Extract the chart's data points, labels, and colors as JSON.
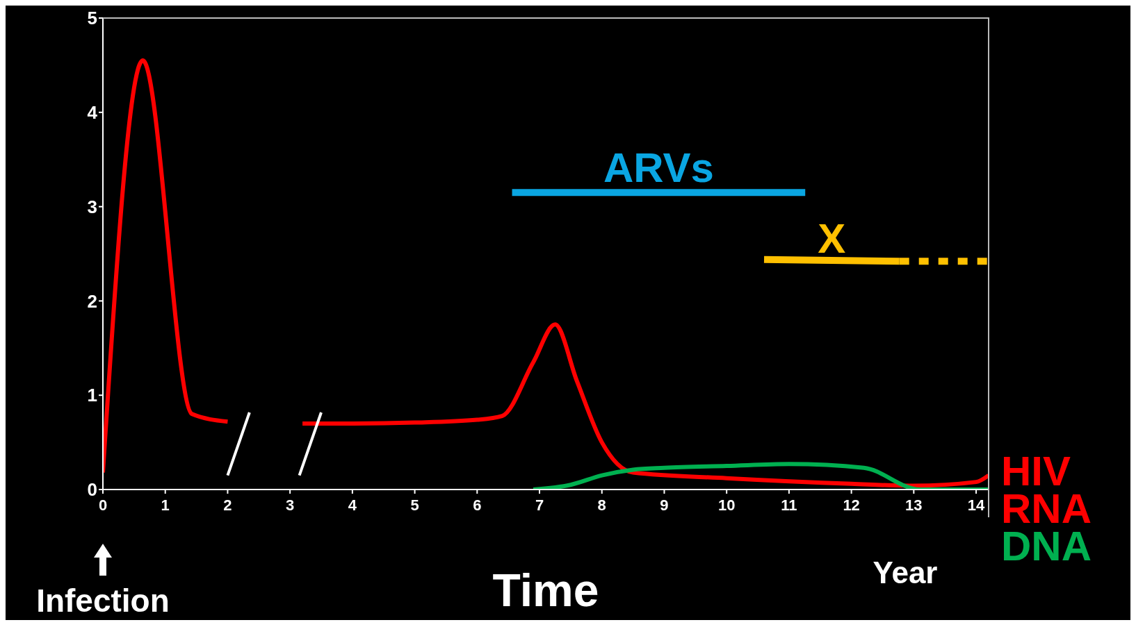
{
  "chart_data": {
    "type": "line",
    "xlabel": "Time",
    "xlim": [
      0,
      14.2
    ],
    "ylim": [
      0,
      5
    ],
    "xticks": [
      0,
      1,
      2,
      3,
      4,
      5,
      6,
      7,
      8,
      9,
      10,
      11,
      12,
      13,
      14
    ],
    "yticks": [
      0,
      1,
      2,
      3,
      4,
      5
    ],
    "marker": "none",
    "annotations": [
      "Year",
      "Infection"
    ],
    "series": [
      {
        "name": "HIV RNA",
        "color": "#ff0000",
        "x": [
          0,
          0.64,
          1.43,
          2.0,
          2.6,
          3.2,
          4,
          5,
          6,
          6.4,
          6.9,
          7.25,
          7.6,
          8.0,
          8.5,
          10,
          12,
          13,
          14,
          14.2
        ],
        "values": [
          0.18,
          4.55,
          0.8,
          0.72,
          null,
          0.7,
          0.7,
          0.71,
          0.74,
          0.78,
          1.35,
          1.75,
          1.15,
          0.5,
          0.18,
          0.12,
          0.06,
          0.04,
          0.08,
          0.15
        ]
      },
      {
        "name": "DNA",
        "color": "#00b050",
        "x": [
          6.9,
          7.5,
          8.0,
          8.5,
          9,
          10,
          11,
          12.2,
          13.1,
          14.2
        ],
        "values": [
          0,
          0.05,
          0.15,
          0.21,
          0.23,
          0.25,
          0.27,
          0.23,
          0,
          0
        ]
      },
      {
        "name": "ARVs",
        "color": "#0aa6e2",
        "x": [
          6.56,
          11.26
        ],
        "values": [
          3.15,
          3.15
        ]
      },
      {
        "name": "X",
        "color": "#ffc000",
        "x": [
          10.6,
          12.77
        ],
        "values": [
          2.44,
          2.42
        ]
      },
      {
        "color": "#ffc000",
        "x": [
          12.77,
          14.2
        ],
        "values": [
          2.42,
          2.42
        ],
        "line_style": "dashed"
      }
    ]
  }
}
